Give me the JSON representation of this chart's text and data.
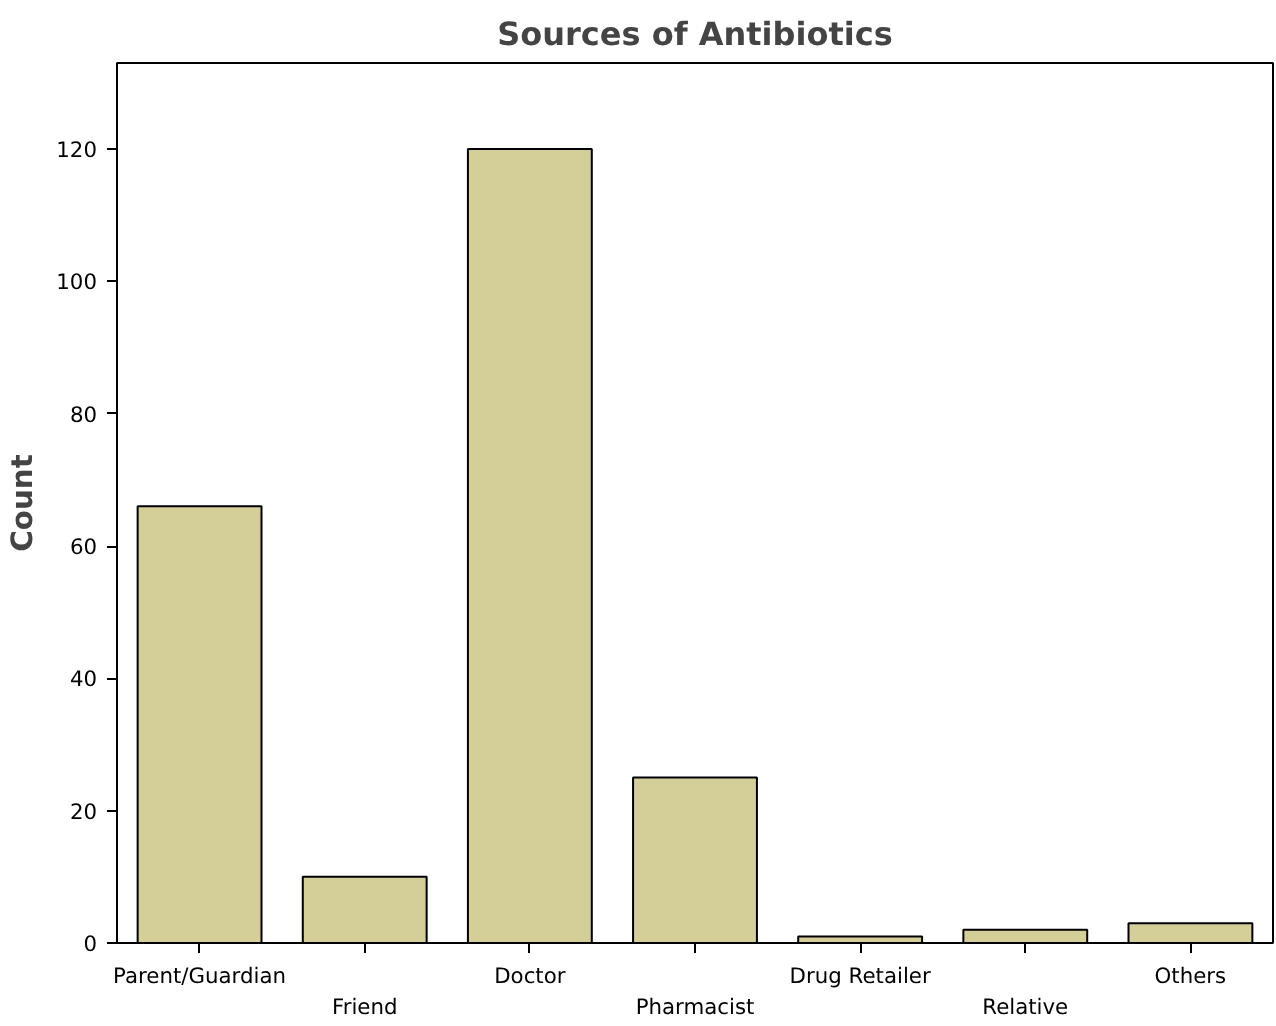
{
  "chart_data": {
    "type": "bar",
    "title": "Sources of Antibiotics",
    "ylabel": "Count",
    "categories": [
      "Parent/Guardian",
      "Friend",
      "Doctor",
      "Pharmacist",
      "Drug Retailer",
      "Relative",
      "Others"
    ],
    "values": [
      66,
      10,
      120,
      25,
      1,
      2,
      3
    ],
    "color": "#d4cf98",
    "ylim": [
      0,
      133
    ],
    "yticks": [
      0,
      20,
      40,
      60,
      80,
      100,
      120
    ],
    "grid": false
  }
}
